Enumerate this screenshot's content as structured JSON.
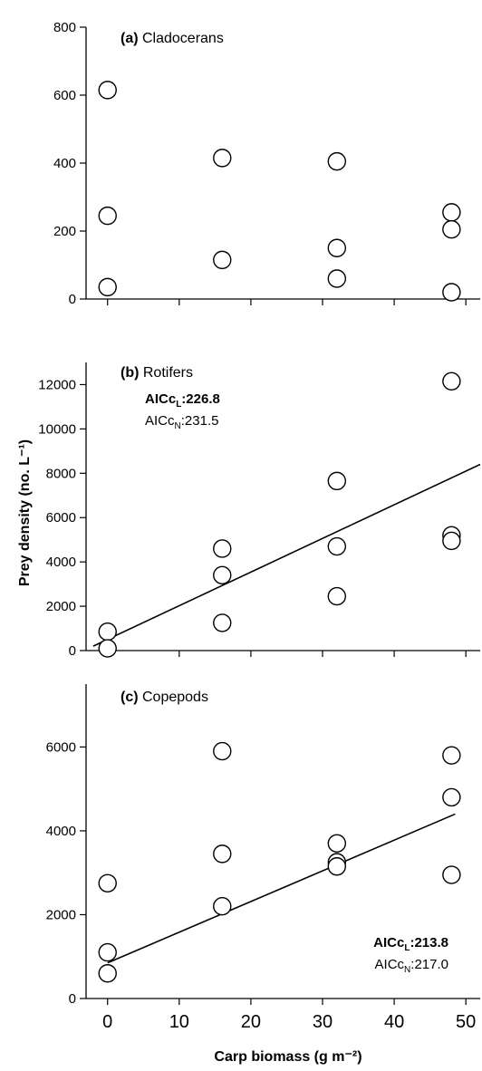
{
  "figure": {
    "ylabel": "Prey density (no. L⁻¹)",
    "xlabel": "Carp biomass (g m⁻²)",
    "x_ticks": [
      0,
      10,
      20,
      30,
      40,
      50
    ]
  },
  "chart_data": [
    {
      "type": "scatter",
      "panel_label": "(a)",
      "title": "Cladocerans",
      "ylim": [
        0,
        800
      ],
      "y_ticks": [
        0,
        200,
        400,
        600,
        800
      ],
      "xlim": [
        -3,
        52
      ],
      "x": [
        0,
        0,
        0,
        16,
        16,
        32,
        32,
        32,
        48,
        48,
        48
      ],
      "y": [
        615,
        245,
        35,
        415,
        115,
        405,
        150,
        60,
        255,
        205,
        20
      ],
      "fit": null,
      "aic": null
    },
    {
      "type": "scatter",
      "panel_label": "(b)",
      "title": "Rotifers",
      "ylim": [
        0,
        13000
      ],
      "y_ticks": [
        0,
        2000,
        4000,
        6000,
        8000,
        10000,
        12000
      ],
      "xlim": [
        -3,
        52
      ],
      "x": [
        0,
        0,
        16,
        16,
        16,
        32,
        32,
        32,
        48,
        48,
        48
      ],
      "y": [
        850,
        100,
        4600,
        3400,
        1250,
        7650,
        4700,
        2450,
        12150,
        5200,
        4950
      ],
      "fit": {
        "x0": -2,
        "y0": 200,
        "x1": 52,
        "y1": 8400
      },
      "aic": {
        "linear_prefix": "AICc",
        "linear_sub": "L",
        "linear_value": ":226.8",
        "nonlinear_prefix": "AICc",
        "nonlinear_sub": "N",
        "nonlinear_value": ":231.5"
      }
    },
    {
      "type": "scatter",
      "panel_label": "(c)",
      "title": "Copepods",
      "ylim": [
        0,
        7500
      ],
      "y_ticks": [
        0,
        2000,
        4000,
        6000
      ],
      "xlim": [
        -3,
        52
      ],
      "x": [
        0,
        0,
        0,
        16,
        16,
        16,
        32,
        32,
        32,
        48,
        48,
        48
      ],
      "y": [
        2750,
        1100,
        600,
        5900,
        3450,
        2200,
        3700,
        3250,
        3150,
        5800,
        4800,
        2950
      ],
      "fit": {
        "x0": 0,
        "y0": 850,
        "x1": 48.5,
        "y1": 4400
      },
      "aic": {
        "linear_prefix": "AICc",
        "linear_sub": "L",
        "linear_value": ":213.8",
        "nonlinear_prefix": "AICc",
        "nonlinear_sub": "N",
        "nonlinear_value": ":217.0"
      }
    }
  ]
}
